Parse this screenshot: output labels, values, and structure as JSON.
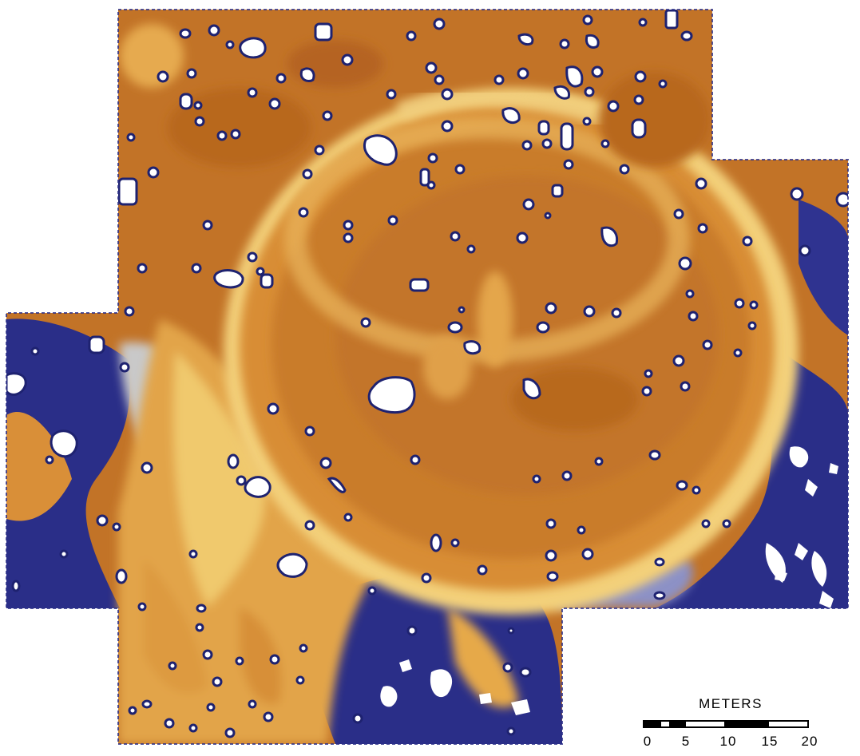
{
  "scale": {
    "title": "METERS",
    "ticks": [
      "0",
      "5",
      "10",
      "15",
      "20"
    ]
  },
  "colors": {
    "background": "#ffffff",
    "deep_brown": "#b5651e",
    "brown": "#c8792a",
    "orange": "#d98f38",
    "light_orange": "#e6a94a",
    "yellow": "#f3d57e",
    "pale": "#f5eec6",
    "grey": "#c8c8c8",
    "light_blue": "#8e93c8",
    "blue": "#3c3f97",
    "navy": "#262a83",
    "void": "#ffffff",
    "hole_outline": "#1e2270"
  }
}
